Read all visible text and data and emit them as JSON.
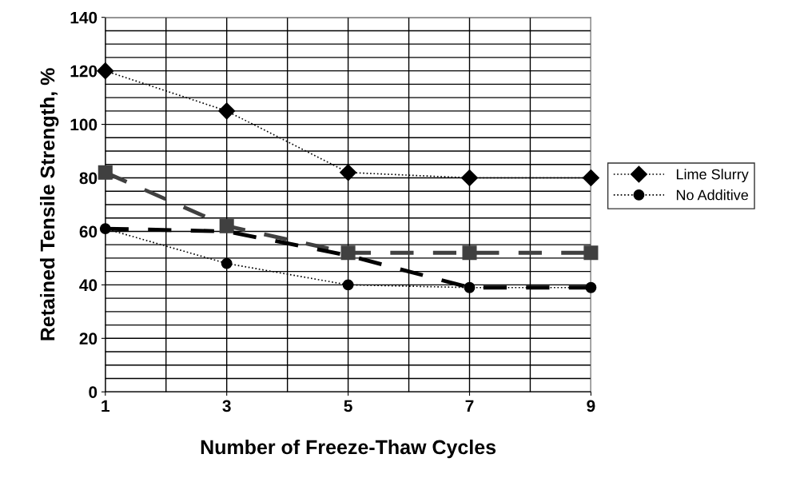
{
  "chart_data": {
    "type": "line",
    "xlabel": "Number of Freeze-Thaw Cycles",
    "ylabel": "Retained Tensile Strength, %",
    "x": [
      1,
      3,
      5,
      7,
      9
    ],
    "xlim": [
      1,
      9
    ],
    "xticks": [
      1,
      3,
      5,
      7,
      9
    ],
    "ylim": [
      0,
      140
    ],
    "yticks": [
      0,
      20,
      40,
      60,
      80,
      100,
      120,
      140
    ],
    "grid": true,
    "legend": "right",
    "series": [
      {
        "name": "Lime Slurry",
        "color": "#000000",
        "values": [
          120,
          105,
          82,
          80,
          80
        ],
        "marker": "diamond",
        "line_style": "dotted"
      },
      {
        "color": "#404040",
        "values": [
          82,
          62,
          52,
          52,
          52
        ],
        "marker": "square",
        "line_style": "dashed"
      },
      {
        "name": "No Additive",
        "color": "#000000",
        "values": [
          61,
          48,
          40,
          39,
          39
        ],
        "marker": "circle",
        "line_style": "dotted"
      },
      {
        "color": "#000000",
        "values": [
          61,
          60,
          51,
          39,
          39
        ],
        "marker": "none",
        "line_style": "dashed"
      }
    ]
  }
}
